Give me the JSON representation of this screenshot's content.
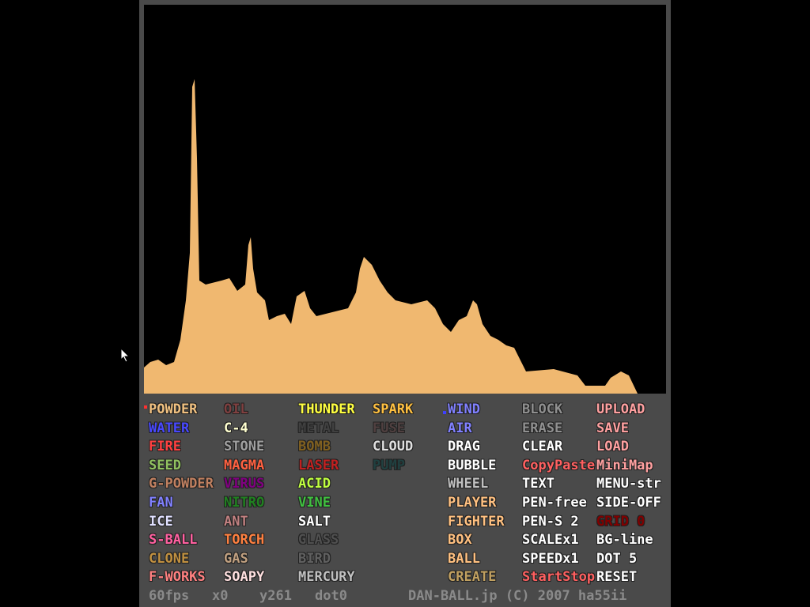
{
  "menu": {
    "columns": [
      [
        {
          "text": "POWDER",
          "color": "#f0c080"
        },
        {
          "text": "WATER",
          "color": "#4848ff"
        },
        {
          "text": "FIRE",
          "color": "#ff4040"
        },
        {
          "text": "SEED",
          "color": "#90c060"
        },
        {
          "text": "G-POWDER",
          "color": "#c08060"
        },
        {
          "text": "FAN",
          "color": "#8080ff"
        },
        {
          "text": "ICE",
          "color": "#e0e0ff"
        },
        {
          "text": "S-BALL",
          "color": "#ff60a0"
        },
        {
          "text": "CLONE",
          "color": "#c09040"
        },
        {
          "text": "F-WORKS",
          "color": "#ff8080"
        }
      ],
      [
        {
          "text": "OIL",
          "color": "#804040"
        },
        {
          "text": "C-4",
          "color": "#ffffd0"
        },
        {
          "text": "STONE",
          "color": "#a0a0a0"
        },
        {
          "text": "MAGMA",
          "color": "#ff6040"
        },
        {
          "text": "VIRUS",
          "color": "#800080"
        },
        {
          "text": "NITRO",
          "color": "#208020"
        },
        {
          "text": "ANT",
          "color": "#c08080"
        },
        {
          "text": "TORCH",
          "color": "#ff8040"
        },
        {
          "text": "GAS",
          "color": "#c0a080"
        },
        {
          "text": "SOAPY",
          "color": "#ffe0e0"
        }
      ],
      [
        {
          "text": "THUNDER",
          "color": "#ffff40"
        },
        {
          "text": "METAL",
          "color": "#404040"
        },
        {
          "text": "BOMB",
          "color": "#806020"
        },
        {
          "text": "LASER",
          "color": "#c02020"
        },
        {
          "text": "ACID",
          "color": "#c0ff40"
        },
        {
          "text": "VINE",
          "color": "#40c040"
        },
        {
          "text": "SALT",
          "color": "#ffffff"
        },
        {
          "text": "GLASS",
          "color": "#505050"
        },
        {
          "text": "BIRD",
          "color": "#606060"
        },
        {
          "text": "MERCURY",
          "color": "#c0c0c0"
        }
      ],
      [
        {
          "text": "SPARK",
          "color": "#ffc040"
        },
        {
          "text": "FUSE",
          "color": "#504040"
        },
        {
          "text": "CLOUD",
          "color": "#e0e0e0"
        },
        {
          "text": "PUMP",
          "color": "#204040"
        }
      ],
      [
        {
          "text": "WIND",
          "color": "#8080ff"
        },
        {
          "text": "AIR",
          "color": "#8080ff"
        },
        {
          "text": "DRAG",
          "color": "#ffffff"
        },
        {
          "text": "BUBBLE",
          "color": "#ffffff"
        },
        {
          "text": "WHEEL",
          "color": "#c0c0c0"
        },
        {
          "text": "PLAYER",
          "color": "#ffc080"
        },
        {
          "text": "FIGHTER",
          "color": "#ffc080"
        },
        {
          "text": "BOX",
          "color": "#ffc080"
        },
        {
          "text": "BALL",
          "color": "#ffc080"
        },
        {
          "text": "CREATE",
          "color": "#c0a060"
        }
      ],
      [
        {
          "text": "BLOCK",
          "color": "#909090"
        },
        {
          "text": "ERASE",
          "color": "#909090"
        },
        {
          "text": "CLEAR",
          "color": "#ffffff"
        },
        {
          "text": "CopyPaste",
          "color": "#ff6060"
        },
        {
          "text": "TEXT",
          "color": "#ffffff"
        },
        {
          "text": "PEN-free",
          "color": "#ffffff"
        },
        {
          "text": "PEN-S 2",
          "color": "#ffffff"
        },
        {
          "text": "SCALEx1",
          "color": "#ffffff"
        },
        {
          "text": "SPEEDx1",
          "color": "#ffffff"
        },
        {
          "text": "StartStop",
          "color": "#ff6060"
        }
      ],
      [
        {
          "text": "UPLOAD",
          "color": "#ffa0a0"
        },
        {
          "text": "SAVE",
          "color": "#ffa0a0"
        },
        {
          "text": "LOAD",
          "color": "#ffa0a0"
        },
        {
          "text": "MiniMap",
          "color": "#ffa0a0"
        },
        {
          "text": "MENU-str",
          "color": "#ffffff"
        },
        {
          "text": "SIDE-OFF",
          "color": "#ffffff"
        },
        {
          "text": "GRID 0",
          "color": "#800000"
        },
        {
          "text": "BG-line",
          "color": "#ffffff"
        },
        {
          "text": "DOT 5",
          "color": "#ffffff"
        },
        {
          "text": "RESET",
          "color": "#ffffff"
        }
      ]
    ]
  },
  "status": {
    "fps": "60fps",
    "x": "x0",
    "y": "y261",
    "dot": "dot0",
    "credit": "DAN-BALL.jp (C) 2007 ha55ii"
  }
}
